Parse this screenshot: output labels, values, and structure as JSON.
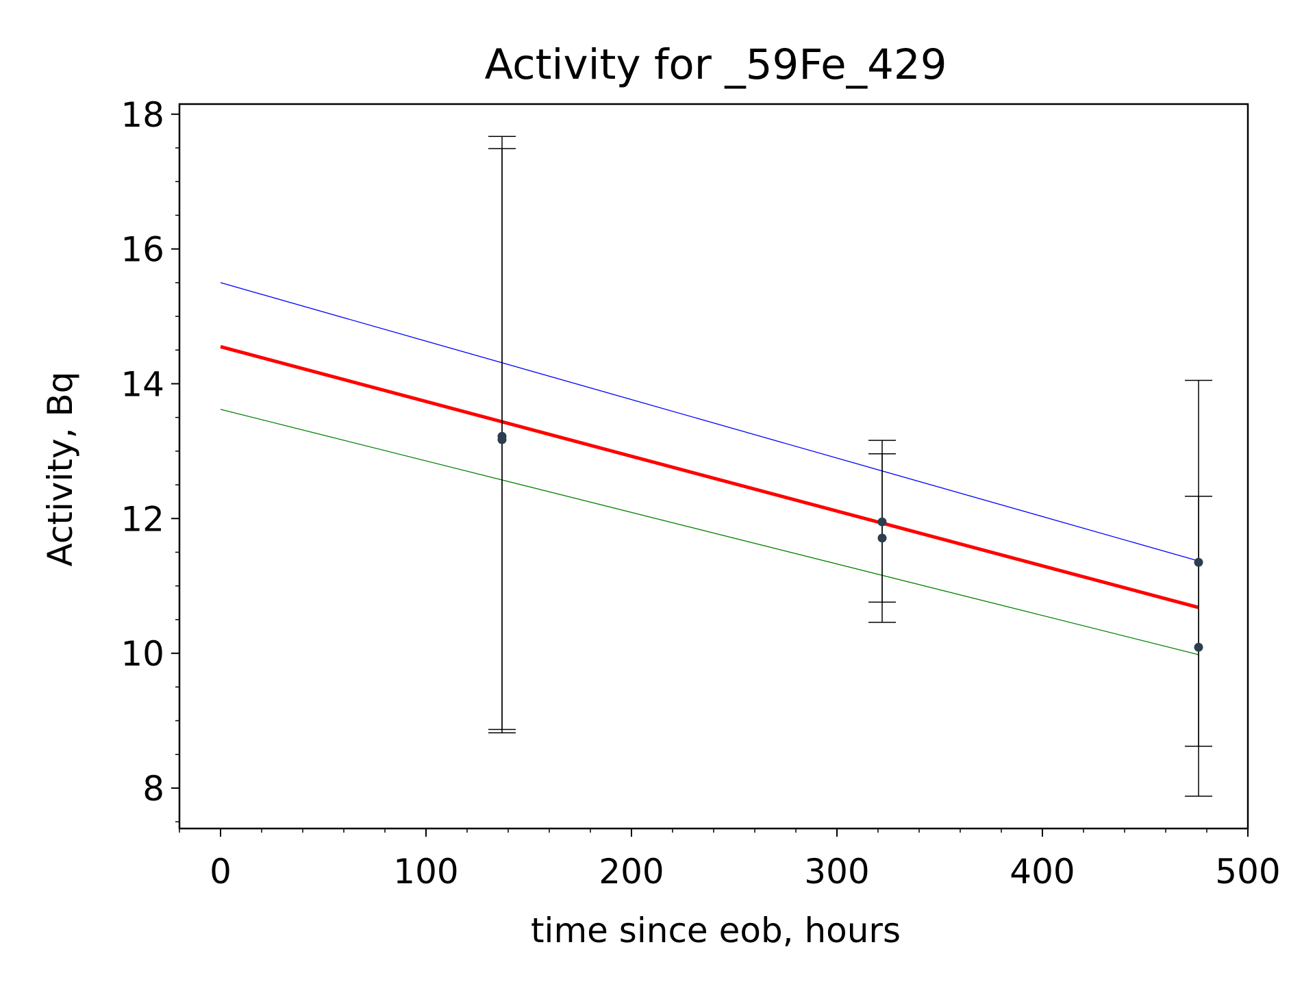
{
  "chart_data": {
    "type": "scatter",
    "title": "Activity for _59Fe_429",
    "xlabel": "time since eob, hours",
    "ylabel": "Activity, Bq",
    "xlim": [
      -20,
      500
    ],
    "ylim": [
      7.4,
      18.15
    ],
    "x_ticks": [
      0,
      100,
      200,
      300,
      400,
      500
    ],
    "x_tick_labels": [
      "0",
      "100",
      "200",
      "300",
      "400",
      "500"
    ],
    "y_ticks": [
      8,
      10,
      12,
      14,
      16,
      18
    ],
    "y_tick_labels": [
      "8",
      "10",
      "12",
      "14",
      "16",
      "18"
    ],
    "grid": false,
    "legend": "none",
    "points": [
      {
        "x": 137,
        "y": 13.22,
        "yerr_low": 8.87,
        "yerr_high": 17.67
      },
      {
        "x": 137,
        "y": 13.17,
        "yerr_low": 8.82,
        "yerr_high": 17.49
      },
      {
        "x": 322,
        "y": 11.95,
        "yerr_low": 10.76,
        "yerr_high": 13.16
      },
      {
        "x": 322,
        "y": 11.71,
        "yerr_low": 10.46,
        "yerr_high": 12.96
      },
      {
        "x": 476,
        "y": 11.35,
        "yerr_low": 8.62,
        "yerr_high": 14.05
      },
      {
        "x": 476,
        "y": 10.09,
        "yerr_low": 7.88,
        "yerr_high": 12.33
      }
    ],
    "lines": [
      {
        "role": "fit",
        "color": "#ff0000",
        "width": 5,
        "x": [
          0,
          476
        ],
        "y": [
          14.55,
          10.68
        ]
      },
      {
        "role": "upper",
        "color": "#0000ff",
        "width": 1.3,
        "x": [
          0,
          476
        ],
        "y": [
          15.5,
          11.37
        ]
      },
      {
        "role": "lower",
        "color": "#008000",
        "width": 1.3,
        "x": [
          0,
          476
        ],
        "y": [
          13.62,
          9.98
        ]
      }
    ],
    "marker_color": "#2c3e50",
    "errorbar_color": "#000000"
  }
}
